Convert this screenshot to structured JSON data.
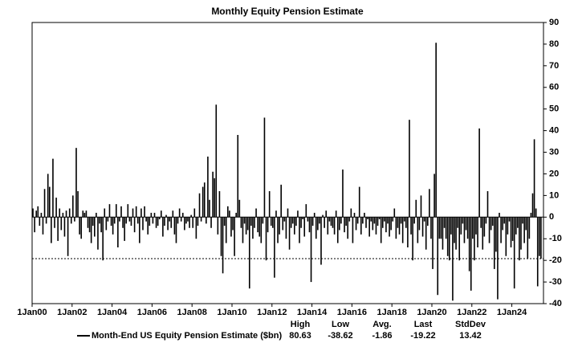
{
  "chart_data": {
    "type": "bar",
    "title": "Monthly Equity Pension Estimate",
    "series": [
      {
        "name": "Month-End US Equity Pension Estimate ($bn)",
        "color": "#000000",
        "values": [
          4,
          -7,
          3,
          5,
          -4,
          2,
          -8,
          13,
          -3,
          20,
          14,
          -12,
          27,
          -5,
          9,
          -11,
          4,
          -6,
          2,
          -9,
          3,
          -18,
          4,
          -3,
          10,
          -2,
          32,
          12,
          -8,
          -10,
          3,
          2,
          3,
          -5,
          -7,
          -12,
          -4,
          -9,
          2,
          -15,
          -3,
          -7,
          -20,
          4,
          -6,
          -2,
          6,
          -4,
          -8,
          -3,
          6,
          -14,
          -2,
          5,
          -5,
          -11,
          -3,
          6,
          -2,
          -4,
          4,
          -7,
          5,
          -3,
          -12,
          4,
          -6,
          5,
          -2,
          -8,
          -4,
          2,
          -3,
          2,
          -5,
          -4,
          -1,
          3,
          -9,
          -4,
          1,
          -6,
          -2,
          -5,
          3,
          -8,
          -12,
          -3,
          4,
          -2,
          2,
          -6,
          -3,
          -2,
          -5,
          1,
          -5,
          4,
          -10,
          -4,
          11,
          -2,
          14,
          16,
          -3,
          28,
          8,
          -5,
          21,
          18,
          52,
          -8,
          12,
          -18,
          -26,
          -4,
          -12,
          5,
          3,
          -9,
          -6,
          -18,
          2,
          38,
          8,
          -5,
          -12,
          -3,
          -8,
          -6,
          -33,
          -4,
          -10,
          -5,
          4,
          -7,
          -9,
          -12,
          -3,
          46,
          -20,
          -7,
          12,
          -4,
          -5,
          -28,
          3,
          -12,
          -8,
          15,
          -6,
          -2,
          -10,
          4,
          -15,
          -5,
          -3,
          -8,
          -4,
          3,
          -12,
          -5,
          -1,
          -9,
          6,
          -2,
          -7,
          -30,
          -4,
          2,
          -10,
          -6,
          -3,
          -22,
          1,
          -5,
          3,
          -8,
          -2,
          -4,
          -5,
          -8,
          3,
          -12,
          -6,
          -3,
          22,
          -7,
          -4,
          -10,
          -2,
          4,
          -12,
          2,
          -6,
          -3,
          14,
          -8,
          -3,
          2,
          -5,
          -1,
          -9,
          -2,
          -6,
          -3,
          -8,
          -4,
          -1,
          -12,
          -5,
          -2,
          -7,
          -3,
          -9,
          -6,
          -2,
          4,
          -10,
          -5,
          -8,
          -3,
          -12,
          -2,
          -5,
          -14,
          45,
          -8,
          -20,
          -3,
          8,
          -12,
          -6,
          10,
          -9,
          -2,
          -15,
          -4,
          13,
          -10,
          -24,
          20,
          80.63,
          -36,
          -10,
          -10,
          -15,
          -5,
          -10,
          -18,
          -20,
          -8,
          -38.62,
          -12,
          -15,
          -5,
          -20,
          -8,
          -3,
          -12,
          -6,
          -10,
          -25,
          -34,
          -10,
          -20,
          -8,
          -14,
          41,
          -5,
          -15,
          -9,
          -3,
          12,
          -12,
          -6,
          -4,
          -24,
          -16,
          -38,
          2,
          -12,
          -6,
          -3,
          -18,
          -8,
          -2,
          -14,
          -11,
          -33,
          -8,
          -5,
          -20,
          -15,
          -3,
          -12,
          -6,
          -19,
          -10,
          2,
          11,
          36,
          4,
          -32,
          -18,
          -19.22
        ]
      }
    ],
    "x": [
      "2000-01",
      "2000-02",
      "2000-03",
      "2000-04",
      "2000-05",
      "2000-06",
      "2000-07",
      "2000-08",
      "2000-09",
      "2000-10",
      "2000-11",
      "2000-12",
      "2001-01",
      "2001-02",
      "2001-03",
      "2001-04",
      "2001-05",
      "2001-06",
      "2001-07",
      "2001-08",
      "2001-09",
      "2001-10",
      "2001-11",
      "2001-12",
      "2002-01",
      "2002-02",
      "2002-03",
      "2002-04",
      "2002-05",
      "2002-06",
      "2002-07",
      "2002-08",
      "2002-09",
      "2002-10",
      "2002-11",
      "2002-12",
      "2003-01",
      "2003-02",
      "2003-03",
      "2003-04",
      "2003-05",
      "2003-06",
      "2003-07",
      "2003-08",
      "2003-09",
      "2003-10",
      "2003-11",
      "2003-12",
      "2004-01",
      "2004-02",
      "2004-03",
      "2004-04",
      "2004-05",
      "2004-06",
      "2004-07",
      "2004-08",
      "2004-09",
      "2004-10",
      "2004-11",
      "2004-12",
      "2005-01",
      "2005-02",
      "2005-03",
      "2005-04",
      "2005-05",
      "2005-06",
      "2005-07",
      "2005-08",
      "2005-09",
      "2005-10",
      "2005-11",
      "2005-12",
      "2006-01",
      "2006-02",
      "2006-03",
      "2006-04",
      "2006-05",
      "2006-06",
      "2006-07",
      "2006-08",
      "2006-09",
      "2006-10",
      "2006-11",
      "2006-12",
      "2007-01",
      "2007-02",
      "2007-03",
      "2007-04",
      "2007-05",
      "2007-06",
      "2007-07",
      "2007-08",
      "2007-09",
      "2007-10",
      "2007-11",
      "2007-12",
      "2008-01",
      "2008-02",
      "2008-03",
      "2008-04",
      "2008-05",
      "2008-06",
      "2008-07",
      "2008-08",
      "2008-09",
      "2008-10",
      "2008-11",
      "2008-12",
      "2009-01",
      "2009-02",
      "2009-03",
      "2009-04",
      "2009-05",
      "2009-06",
      "2009-07",
      "2009-08",
      "2009-09",
      "2009-10",
      "2009-11",
      "2009-12",
      "2010-01",
      "2010-02",
      "2010-03",
      "2010-04",
      "2010-05",
      "2010-06",
      "2010-07",
      "2010-08",
      "2010-09",
      "2010-10",
      "2010-11",
      "2010-12",
      "2011-01",
      "2011-02",
      "2011-03",
      "2011-04",
      "2011-05",
      "2011-06",
      "2011-07",
      "2011-08",
      "2011-09",
      "2011-10",
      "2011-11",
      "2011-12",
      "2012-01",
      "2012-02",
      "2012-03",
      "2012-04",
      "2012-05",
      "2012-06",
      "2012-07",
      "2012-08",
      "2012-09",
      "2012-10",
      "2012-11",
      "2012-12",
      "2013-01",
      "2013-02",
      "2013-03",
      "2013-04",
      "2013-05",
      "2013-06",
      "2013-07",
      "2013-08",
      "2013-09",
      "2013-10",
      "2013-11",
      "2013-12",
      "2014-01",
      "2014-02",
      "2014-03",
      "2014-04",
      "2014-05",
      "2014-06",
      "2014-07",
      "2014-08",
      "2014-09",
      "2014-10",
      "2014-11",
      "2014-12",
      "2015-01",
      "2015-02",
      "2015-03",
      "2015-04",
      "2015-05",
      "2015-06",
      "2015-07",
      "2015-08",
      "2015-09",
      "2015-10",
      "2015-11",
      "2015-12",
      "2016-01",
      "2016-02",
      "2016-03",
      "2016-04",
      "2016-05",
      "2016-06",
      "2016-07",
      "2016-08",
      "2016-09",
      "2016-10",
      "2016-11",
      "2016-12",
      "2017-01",
      "2017-02",
      "2017-03",
      "2017-04",
      "2017-05",
      "2017-06",
      "2017-07",
      "2017-08",
      "2017-09",
      "2017-10",
      "2017-11",
      "2017-12",
      "2018-01",
      "2018-02",
      "2018-03",
      "2018-04",
      "2018-05",
      "2018-06",
      "2018-07",
      "2018-08",
      "2018-09",
      "2018-10",
      "2018-11",
      "2018-12",
      "2019-01",
      "2019-02",
      "2019-03",
      "2019-04",
      "2019-05",
      "2019-06",
      "2019-07",
      "2019-08",
      "2019-09",
      "2019-10",
      "2019-11",
      "2019-12",
      "2020-01",
      "2020-02",
      "2020-03",
      "2020-04",
      "2020-05",
      "2020-06",
      "2020-07",
      "2020-08",
      "2020-09",
      "2020-10",
      "2020-11",
      "2020-12",
      "2021-01",
      "2021-02",
      "2021-03",
      "2021-04",
      "2021-05",
      "2021-06",
      "2021-07",
      "2021-08",
      "2021-09",
      "2021-10",
      "2021-11",
      "2021-12",
      "2022-01",
      "2022-02",
      "2022-03",
      "2022-04",
      "2022-05",
      "2022-06",
      "2022-07",
      "2022-08",
      "2022-09",
      "2022-10",
      "2022-11",
      "2022-12",
      "2023-01",
      "2023-02",
      "2023-03",
      "2023-04",
      "2023-05",
      "2023-06",
      "2023-07",
      "2023-08",
      "2023-09",
      "2023-10",
      "2023-11",
      "2023-12",
      "2024-01",
      "2024-02",
      "2024-03",
      "2024-04",
      "2024-05",
      "2024-06",
      "2024-07",
      "2024-08",
      "2024-09",
      "2024-10",
      "2024-11",
      "2024-12",
      "2025-01",
      "2025-02",
      "2025-03",
      "2025-04",
      "2025-05",
      "2025-06"
    ],
    "xlim": [
      "2000-01",
      "2025-08"
    ],
    "xticks": [
      {
        "value": "2000-01",
        "label": "1Jan00"
      },
      {
        "value": "2002-01",
        "label": "1Jan02"
      },
      {
        "value": "2004-01",
        "label": "1Jan04"
      },
      {
        "value": "2006-01",
        "label": "1Jan06"
      },
      {
        "value": "2008-01",
        "label": "1Jan08"
      },
      {
        "value": "2010-01",
        "label": "1Jan10"
      },
      {
        "value": "2012-01",
        "label": "1Jan12"
      },
      {
        "value": "2014-01",
        "label": "1Jan14"
      },
      {
        "value": "2016-01",
        "label": "1Jan16"
      },
      {
        "value": "2018-01",
        "label": "1Jan18"
      },
      {
        "value": "2020-01",
        "label": "1Jan20"
      },
      {
        "value": "2022-01",
        "label": "1Jan22"
      },
      {
        "value": "2024-01",
        "label": "1Jan24"
      }
    ],
    "ylim": [
      -40,
      90
    ],
    "yticks": [
      -40,
      -30,
      -20,
      -10,
      0,
      10,
      20,
      30,
      40,
      50,
      60,
      70,
      80,
      90
    ],
    "stats": [
      {
        "label": "High",
        "value": 80.63
      },
      {
        "label": "Low",
        "value": -38.62
      },
      {
        "label": "Avg.",
        "value": -1.86
      },
      {
        "label": "Last",
        "value": -19.22
      },
      {
        "label": "StdDev",
        "value": 13.42
      }
    ]
  }
}
